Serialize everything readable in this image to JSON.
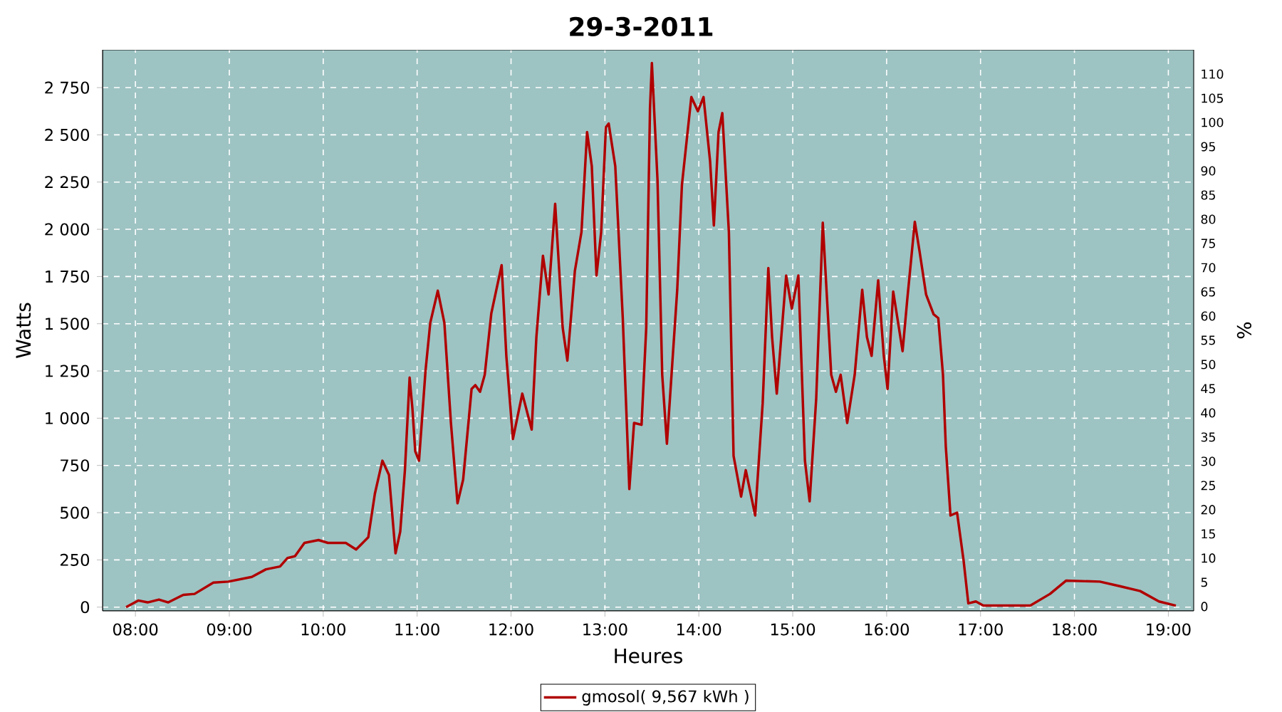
{
  "chart_data": {
    "type": "line",
    "title": "29-3-2011",
    "xlabel": "Heures",
    "ylabel": "Watts",
    "y2label": "%",
    "x": [
      7.9,
      8.03,
      8.13,
      8.25,
      8.35,
      8.51,
      8.63,
      8.83,
      8.99,
      9.24,
      9.39,
      9.54,
      9.62,
      9.7,
      9.8,
      9.95,
      10.05,
      10.24,
      10.35,
      10.48,
      10.55,
      10.63,
      10.7,
      10.77,
      10.82,
      10.87,
      10.92,
      10.95,
      10.98,
      11.02,
      11.09,
      11.14,
      11.22,
      11.29,
      11.36,
      11.43,
      11.49,
      11.58,
      11.62,
      11.67,
      11.72,
      11.79,
      11.9,
      11.95,
      12.02,
      12.12,
      12.22,
      12.27,
      12.34,
      12.4,
      12.47,
      12.55,
      12.6,
      12.68,
      12.75,
      12.81,
      12.86,
      12.91,
      12.96,
      13.01,
      13.04,
      13.11,
      13.19,
      13.26,
      13.31,
      13.39,
      13.44,
      13.48,
      13.5,
      13.56,
      13.61,
      13.66,
      13.77,
      13.82,
      13.92,
      13.99,
      14.05,
      14.12,
      14.16,
      14.21,
      14.25,
      14.32,
      14.37,
      14.45,
      14.5,
      14.6,
      14.68,
      14.74,
      14.78,
      14.83,
      14.93,
      14.99,
      15.06,
      15.13,
      15.18,
      15.25,
      15.32,
      15.41,
      15.46,
      15.51,
      15.58,
      15.66,
      15.74,
      15.79,
      15.84,
      15.91,
      15.97,
      16.01,
      16.07,
      16.17,
      16.22,
      16.3,
      16.35,
      16.42,
      16.5,
      16.55,
      16.6,
      16.63,
      16.68,
      16.75,
      16.82,
      16.87,
      16.95,
      17.03,
      17.53,
      17.74,
      17.91,
      18.27,
      18.49,
      18.7,
      18.9,
      19.08
    ],
    "series": [
      {
        "name": "gmosol( 9,567 kWh )",
        "color": "#b00000",
        "values": [
          0,
          35,
          25,
          40,
          25,
          65,
          70,
          130,
          135,
          160,
          200,
          215,
          260,
          270,
          340,
          355,
          340,
          340,
          305,
          370,
          600,
          775,
          700,
          285,
          400,
          725,
          1215,
          1050,
          825,
          775,
          1255,
          1505,
          1675,
          1505,
          975,
          550,
          675,
          1155,
          1175,
          1140,
          1230,
          1555,
          1810,
          1330,
          890,
          1130,
          940,
          1430,
          1860,
          1655,
          2135,
          1480,
          1305,
          1780,
          1985,
          2515,
          2335,
          1755,
          1985,
          2540,
          2560,
          2335,
          1530,
          625,
          975,
          965,
          1480,
          2640,
          2880,
          2260,
          1230,
          865,
          1680,
          2235,
          2700,
          2625,
          2700,
          2360,
          2020,
          2515,
          2615,
          1985,
          800,
          585,
          725,
          485,
          1080,
          1795,
          1430,
          1130,
          1755,
          1580,
          1755,
          775,
          560,
          1105,
          2035,
          1230,
          1140,
          1230,
          975,
          1230,
          1680,
          1430,
          1330,
          1730,
          1330,
          1155,
          1670,
          1355,
          1630,
          2040,
          1885,
          1655,
          1550,
          1530,
          1230,
          850,
          485,
          500,
          245,
          20,
          30,
          8,
          8,
          70,
          140,
          135,
          110,
          85,
          30,
          8
        ]
      }
    ],
    "xlim": [
      7.65,
      19.27
    ],
    "ylim": [
      -20,
      2950
    ],
    "y2lim": [
      -0.9,
      115
    ],
    "xticks": [
      {
        "value": 8,
        "label": "08:00"
      },
      {
        "value": 9,
        "label": "09:00"
      },
      {
        "value": 10,
        "label": "10:00"
      },
      {
        "value": 11,
        "label": "11:00"
      },
      {
        "value": 12,
        "label": "12:00"
      },
      {
        "value": 13,
        "label": "13:00"
      },
      {
        "value": 14,
        "label": "14:00"
      },
      {
        "value": 15,
        "label": "15:00"
      },
      {
        "value": 16,
        "label": "16:00"
      },
      {
        "value": 17,
        "label": "17:00"
      },
      {
        "value": 18,
        "label": "18:00"
      },
      {
        "value": 19,
        "label": "19:00"
      }
    ],
    "yticks": [
      0,
      250,
      500,
      750,
      {
        "value": 1000,
        "label": "1 000"
      },
      {
        "value": 1250,
        "label": "1 250"
      },
      {
        "value": 1500,
        "label": "1 500"
      },
      {
        "value": 1750,
        "label": "1 750"
      },
      {
        "value": 2000,
        "label": "2 000"
      },
      {
        "value": 2250,
        "label": "2 250"
      },
      {
        "value": 2500,
        "label": "2 500"
      },
      {
        "value": 2750,
        "label": "2 750"
      }
    ],
    "y2ticks": [
      0,
      5,
      10,
      15,
      20,
      25,
      30,
      35,
      40,
      45,
      50,
      55,
      60,
      65,
      70,
      75,
      80,
      85,
      90,
      95,
      100,
      105,
      110
    ],
    "grid": true,
    "legend": "bottom",
    "marker": "none",
    "line_style": "solid"
  }
}
